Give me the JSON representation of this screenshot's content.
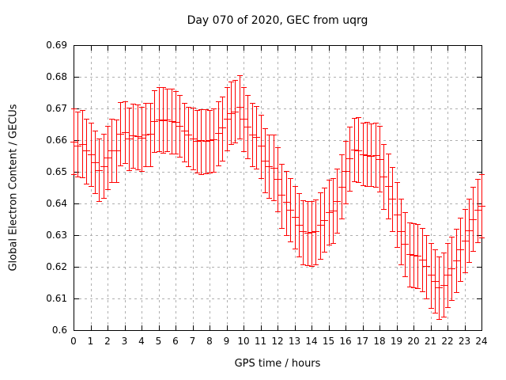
{
  "page": {
    "background": "#ffffff"
  },
  "chart_data": {
    "type": "errorbar",
    "title": "Day 070 of 2020, GEC from uqrg",
    "xlabel": "GPS time / hours",
    "ylabel": "Global Electron Content / GECUs",
    "xlim": [
      0,
      24
    ],
    "ylim": [
      0.6,
      0.69
    ],
    "grid": true,
    "legend": "none",
    "axis_color": "#000000",
    "grid_color": "#b0b0b0",
    "text_color": "#000000",
    "xticks": [
      0,
      1,
      2,
      3,
      4,
      5,
      6,
      7,
      8,
      9,
      10,
      11,
      12,
      13,
      14,
      15,
      16,
      17,
      18,
      19,
      20,
      21,
      22,
      23,
      24
    ],
    "xtick_labels": [
      "0",
      "1",
      "2",
      "3",
      "4",
      "5",
      "6",
      "7",
      "8",
      "9",
      "10",
      "11",
      "12",
      "13",
      "14",
      "15",
      "16",
      "17",
      "18",
      "19",
      "20",
      "21",
      "22",
      "23",
      "24"
    ],
    "yticks": [
      0.6,
      0.61,
      0.62,
      0.63,
      0.64,
      0.65,
      0.66,
      0.67,
      0.68,
      0.69
    ],
    "ytick_labels": [
      "0.6",
      "0.61",
      "0.62",
      "0.63",
      "0.64",
      "0.65",
      "0.66",
      "0.67",
      "0.68",
      "0.69"
    ],
    "series": [
      {
        "name": "GEC from uqrg",
        "color": "#ff0000",
        "x": [
          0,
          0.25,
          0.5,
          0.75,
          1,
          1.25,
          1.5,
          1.75,
          2,
          2.25,
          2.5,
          2.75,
          3,
          3.25,
          3.5,
          3.75,
          4,
          4.25,
          4.5,
          4.75,
          5,
          5.25,
          5.5,
          5.75,
          6,
          6.25,
          6.5,
          6.75,
          7,
          7.25,
          7.5,
          7.75,
          8,
          8.25,
          8.5,
          8.75,
          9,
          9.25,
          9.5,
          9.75,
          10,
          10.25,
          10.5,
          10.75,
          11,
          11.25,
          11.5,
          11.75,
          12,
          12.25,
          12.5,
          12.75,
          13,
          13.25,
          13.5,
          13.75,
          14,
          14.25,
          14.5,
          14.75,
          15,
          15.25,
          15.5,
          15.75,
          16,
          16.25,
          16.5,
          16.75,
          17,
          17.25,
          17.5,
          17.75,
          18,
          18.25,
          18.5,
          18.75,
          19,
          19.25,
          19.5,
          19.75,
          20,
          20.25,
          20.5,
          20.75,
          21,
          21.25,
          21.5,
          21.75,
          22,
          22.25,
          22.5,
          22.75,
          23,
          23.25,
          23.5,
          23.75,
          24
        ],
        "y": [
          0.6596,
          0.6583,
          0.6588,
          0.6567,
          0.6554,
          0.6529,
          0.6504,
          0.6518,
          0.6546,
          0.6567,
          0.6567,
          0.6621,
          0.6625,
          0.6604,
          0.6615,
          0.6613,
          0.6607,
          0.6618,
          0.6621,
          0.666,
          0.6665,
          0.6663,
          0.6665,
          0.666,
          0.6657,
          0.6644,
          0.6629,
          0.6617,
          0.6604,
          0.6598,
          0.66,
          0.6598,
          0.66,
          0.6602,
          0.6623,
          0.6639,
          0.6667,
          0.6685,
          0.669,
          0.6706,
          0.6667,
          0.6643,
          0.6618,
          0.661,
          0.6582,
          0.6535,
          0.6518,
          0.6513,
          0.6478,
          0.6428,
          0.6404,
          0.6379,
          0.6358,
          0.6333,
          0.6313,
          0.6308,
          0.631,
          0.6313,
          0.6332,
          0.6348,
          0.6373,
          0.6377,
          0.6408,
          0.6452,
          0.6502,
          0.6542,
          0.6571,
          0.6568,
          0.6554,
          0.6552,
          0.655,
          0.6553,
          0.654,
          0.6486,
          0.6454,
          0.6415,
          0.6365,
          0.6312,
          0.6273,
          0.624,
          0.6238,
          0.6235,
          0.6223,
          0.6202,
          0.6175,
          0.6154,
          0.6135,
          0.6143,
          0.6175,
          0.6196,
          0.6221,
          0.6254,
          0.6282,
          0.6315,
          0.635,
          0.6379,
          0.6393
        ],
        "y_high": [
          0.67,
          0.6689,
          0.6694,
          0.6667,
          0.6654,
          0.6631,
          0.6604,
          0.6621,
          0.6646,
          0.6667,
          0.6665,
          0.6721,
          0.6723,
          0.6702,
          0.6715,
          0.6713,
          0.6704,
          0.6717,
          0.6718,
          0.6758,
          0.6767,
          0.6768,
          0.6763,
          0.6762,
          0.6756,
          0.6743,
          0.6717,
          0.6706,
          0.6702,
          0.6696,
          0.6698,
          0.6698,
          0.6696,
          0.67,
          0.6723,
          0.6738,
          0.6767,
          0.6785,
          0.679,
          0.6804,
          0.6768,
          0.6743,
          0.6718,
          0.6708,
          0.6679,
          0.6638,
          0.6618,
          0.6617,
          0.6577,
          0.6525,
          0.6502,
          0.6479,
          0.6456,
          0.6432,
          0.641,
          0.6408,
          0.6407,
          0.6413,
          0.6435,
          0.645,
          0.6475,
          0.6479,
          0.651,
          0.6554,
          0.6598,
          0.6643,
          0.6671,
          0.6672,
          0.6656,
          0.6658,
          0.6652,
          0.6655,
          0.6645,
          0.6588,
          0.6557,
          0.6515,
          0.6467,
          0.6414,
          0.6373,
          0.634,
          0.6338,
          0.6335,
          0.6323,
          0.63,
          0.6275,
          0.6254,
          0.6233,
          0.6246,
          0.6275,
          0.6296,
          0.6321,
          0.6354,
          0.6383,
          0.6415,
          0.6452,
          0.6477,
          0.6493
        ],
        "y_low": [
          0.6492,
          0.6485,
          0.6482,
          0.6463,
          0.6454,
          0.6433,
          0.6408,
          0.6417,
          0.6446,
          0.6467,
          0.6467,
          0.6521,
          0.6527,
          0.6504,
          0.6513,
          0.6508,
          0.6502,
          0.6517,
          0.6518,
          0.6562,
          0.6566,
          0.656,
          0.6565,
          0.6557,
          0.6558,
          0.6548,
          0.6533,
          0.6517,
          0.6508,
          0.6498,
          0.6493,
          0.6496,
          0.6498,
          0.65,
          0.6521,
          0.6535,
          0.6567,
          0.6588,
          0.6592,
          0.6604,
          0.6565,
          0.6543,
          0.6517,
          0.651,
          0.6479,
          0.6435,
          0.6417,
          0.641,
          0.6375,
          0.6323,
          0.63,
          0.6279,
          0.6258,
          0.6233,
          0.6207,
          0.6204,
          0.6202,
          0.6207,
          0.6225,
          0.6248,
          0.6271,
          0.6275,
          0.6308,
          0.6352,
          0.64,
          0.644,
          0.6471,
          0.6468,
          0.6457,
          0.6454,
          0.6455,
          0.6452,
          0.6438,
          0.6383,
          0.6352,
          0.6313,
          0.6263,
          0.6208,
          0.6171,
          0.6138,
          0.6135,
          0.6133,
          0.6123,
          0.61,
          0.6071,
          0.6054,
          0.6035,
          0.6043,
          0.6073,
          0.6096,
          0.6121,
          0.6154,
          0.6182,
          0.6215,
          0.625,
          0.6277,
          0.6293
        ]
      }
    ]
  }
}
